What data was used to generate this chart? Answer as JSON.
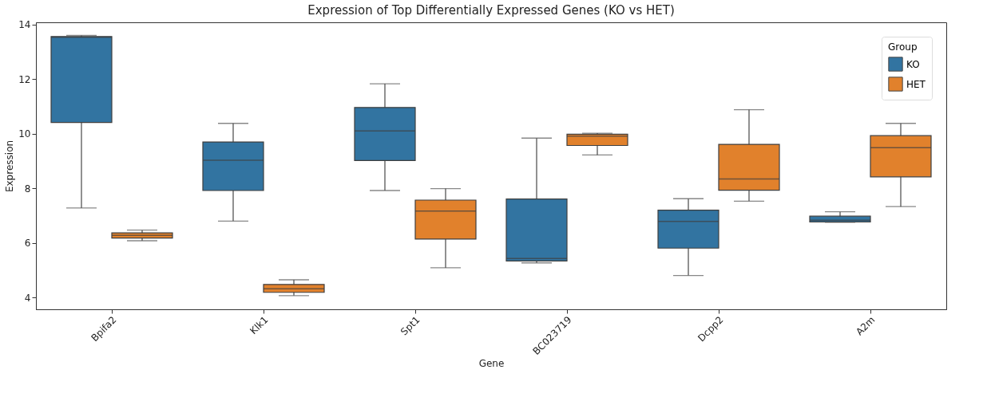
{
  "chart_data": {
    "type": "box",
    "title": "Expression of Top Differentially Expressed Genes (KO vs HET)",
    "xlabel": "Gene",
    "ylabel": "Expression",
    "legend_title": "Group",
    "legend": "top right",
    "grid": false,
    "categories": [
      "Bpifa2",
      "Klk1",
      "Spt1",
      "BC023719",
      "Dcpp2",
      "A2m"
    ],
    "ylim": [
      3.57,
      14.08
    ],
    "yticks": [
      4,
      6,
      8,
      10,
      12,
      14
    ],
    "series": [
      {
        "name": "KO",
        "color": "#3274a1",
        "boxes": [
          {
            "low": 7.28,
            "q1": 10.41,
            "median": 13.53,
            "q3": 13.56,
            "high": 13.6
          },
          {
            "low": 6.8,
            "q1": 7.92,
            "median": 9.03,
            "q3": 9.7,
            "high": 10.38
          },
          {
            "low": 7.92,
            "q1": 9.02,
            "median": 10.1,
            "q3": 10.96,
            "high": 11.83
          },
          {
            "low": 5.27,
            "q1": 5.34,
            "median": 5.43,
            "q3": 7.61,
            "high": 9.84
          },
          {
            "low": 4.81,
            "q1": 5.81,
            "median": 6.79,
            "q3": 7.2,
            "high": 7.62
          },
          {
            "low": 6.76,
            "q1": 6.77,
            "median": 6.83,
            "q3": 6.98,
            "high": 7.14
          }
        ]
      },
      {
        "name": "HET",
        "color": "#e1812c",
        "boxes": [
          {
            "low": 6.08,
            "q1": 6.18,
            "median": 6.28,
            "q3": 6.37,
            "high": 6.47
          },
          {
            "low": 4.07,
            "q1": 4.19,
            "median": 4.32,
            "q3": 4.48,
            "high": 4.65
          },
          {
            "low": 5.09,
            "q1": 6.14,
            "median": 7.17,
            "q3": 7.57,
            "high": 7.99
          },
          {
            "low": 9.22,
            "q1": 9.57,
            "median": 9.91,
            "q3": 9.98,
            "high": 10.02
          },
          {
            "low": 7.53,
            "q1": 7.93,
            "median": 8.34,
            "q3": 9.61,
            "high": 10.88
          },
          {
            "low": 7.33,
            "q1": 8.42,
            "median": 9.49,
            "q3": 9.93,
            "high": 10.38
          }
        ]
      }
    ]
  }
}
